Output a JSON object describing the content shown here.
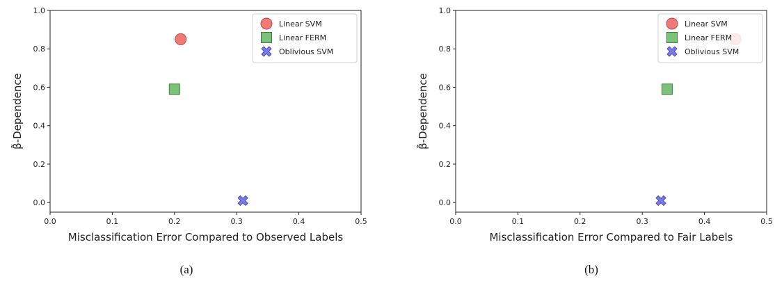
{
  "chart_data": [
    {
      "type": "scatter",
      "panel_label": "(a)",
      "xlabel": "Misclassification Error Compared to Observed Labels",
      "ylabel": "β̃-Dependence",
      "xlim": [
        0.0,
        0.5
      ],
      "ylim": [
        -0.05,
        1.0
      ],
      "xticks": [
        "0.0",
        "0.1",
        "0.2",
        "0.3",
        "0.4",
        "0.5"
      ],
      "yticks": [
        "0.0",
        "0.2",
        "0.4",
        "0.6",
        "0.8",
        "1.0"
      ],
      "grid": false,
      "legend_position": "top-right",
      "series": [
        {
          "name": "Linear SVM",
          "marker": "circle",
          "color": "#f07a78",
          "edge": "#b84a48",
          "points": [
            {
              "x": 0.21,
              "y": 0.85
            }
          ]
        },
        {
          "name": "Linear FERM",
          "marker": "square",
          "color": "#7cc27a",
          "edge": "#3f7f3d",
          "points": [
            {
              "x": 0.2,
              "y": 0.59
            }
          ]
        },
        {
          "name": "Oblivious SVM",
          "marker": "x",
          "color": "#7b7be8",
          "edge": "#4a4ab0",
          "points": [
            {
              "x": 0.31,
              "y": 0.01
            }
          ]
        }
      ]
    },
    {
      "type": "scatter",
      "panel_label": "(b)",
      "xlabel": "Misclassification Error Compared to Fair Labels",
      "ylabel": "β̃-Dependence",
      "xlim": [
        0.0,
        0.5
      ],
      "ylim": [
        -0.05,
        1.0
      ],
      "xticks": [
        "0.0",
        "0.1",
        "0.2",
        "0.3",
        "0.4",
        "0.5"
      ],
      "yticks": [
        "0.0",
        "0.2",
        "0.4",
        "0.6",
        "0.8",
        "1.0"
      ],
      "grid": false,
      "legend_position": "top-right",
      "series": [
        {
          "name": "Linear SVM",
          "marker": "circle",
          "color": "#f07a78",
          "edge": "#b84a48",
          "points": [
            {
              "x": 0.45,
              "y": 0.85
            }
          ]
        },
        {
          "name": "Linear FERM",
          "marker": "square",
          "color": "#7cc27a",
          "edge": "#3f7f3d",
          "points": [
            {
              "x": 0.34,
              "y": 0.59
            }
          ]
        },
        {
          "name": "Oblivious SVM",
          "marker": "x",
          "color": "#7b7be8",
          "edge": "#4a4ab0",
          "points": [
            {
              "x": 0.33,
              "y": 0.01
            }
          ]
        }
      ]
    }
  ]
}
